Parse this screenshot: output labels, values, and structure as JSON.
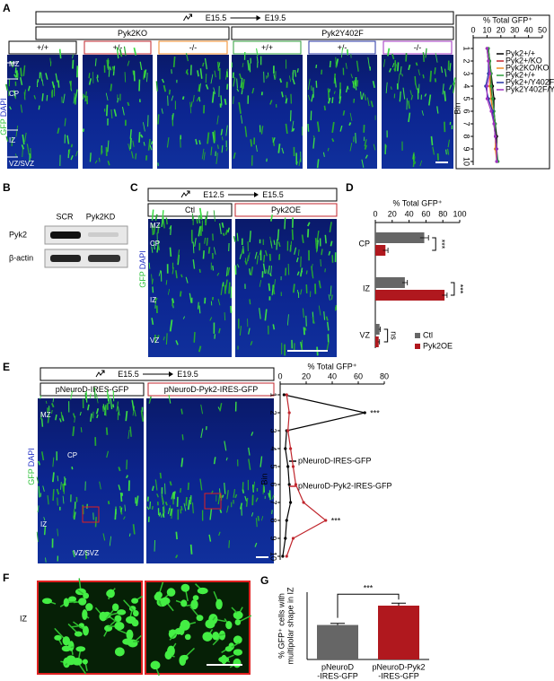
{
  "panels": {
    "labels": [
      "A",
      "B",
      "C",
      "D",
      "E",
      "F",
      "G"
    ]
  },
  "panel_a": {
    "from": "E15.5",
    "to": "E19.5",
    "groups": [
      "Pyk2KO",
      "Pyk2Y402F"
    ],
    "genotypes": [
      "+/+",
      "+/-",
      "-/-",
      "+/+",
      "+/-",
      "-/-"
    ],
    "genotype_colors": [
      "#000000",
      "#c0262d",
      "#f08a24",
      "#2e9e3a",
      "#2433a6",
      "#a030c0"
    ],
    "layers": [
      "MZ",
      "CP",
      "IZ",
      "VZ/SVZ"
    ],
    "stains": [
      "GFP",
      "DAPI"
    ]
  },
  "panel_b": {
    "lanes": [
      "SCR",
      "Pyk2KD"
    ],
    "proteins": [
      "Pyk2",
      "β-actin"
    ]
  },
  "panel_c": {
    "from": "E12.5",
    "to": "E15.5",
    "conditions": [
      "Ctl",
      "Pyk2OE"
    ],
    "condition_colors": [
      "#000000",
      "#c0262d"
    ],
    "layers": [
      "MZ",
      "CP",
      "IZ",
      "VZ"
    ],
    "stains": [
      "GFP",
      "DAPI"
    ]
  },
  "panel_e": {
    "from": "E15.5",
    "to": "E19.5",
    "conditions": [
      "pNeuroD-IRES-GFP",
      "pNeuroD-Pyk2-IRES-GFP"
    ],
    "condition_colors": [
      "#000000",
      "#c0262d"
    ],
    "layers": [
      "MZ",
      "CP",
      "IZ",
      "VZ/SVZ"
    ],
    "stains": [
      "GFP",
      "DAPI"
    ]
  },
  "panel_f": {
    "region": "IZ"
  },
  "chart_data": [
    {
      "type": "line",
      "orientation": "horizontal",
      "xlabel": "% Total GFP⁺",
      "ylabel": "Bin",
      "categories": [
        1,
        2,
        3,
        4,
        5,
        6,
        7,
        8,
        9,
        10
      ],
      "xlim": [
        0,
        50
      ],
      "xticks": [
        0,
        10,
        20,
        30,
        40,
        50
      ],
      "series": [
        {
          "name": "Pyk2+/+",
          "color": "#000000",
          "values": [
            11,
            12,
            13,
            14,
            15,
            15,
            16,
            17,
            17,
            17
          ]
        },
        {
          "name": "Pyk2+/KO",
          "color": "#c0262d",
          "values": [
            10,
            11,
            12,
            13,
            13,
            14,
            15,
            16,
            17,
            17
          ]
        },
        {
          "name": "Pyk2KO/KO",
          "color": "#f08a24",
          "values": [
            10,
            11,
            12,
            12,
            13,
            14,
            15,
            16,
            16,
            17
          ]
        },
        {
          "name": "Pyk2+/+",
          "color": "#2e9e3a",
          "values": [
            11,
            12,
            13,
            13,
            14,
            15,
            16,
            16,
            17,
            18
          ]
        },
        {
          "name": "Pyk2+/Y402F",
          "color": "#2433a6",
          "values": [
            10,
            11,
            11,
            9,
            11,
            14,
            15,
            16,
            17,
            17
          ]
        },
        {
          "name": "Pyk2Y402F/Y402F",
          "color": "#a030c0",
          "values": [
            10,
            11,
            12,
            10,
            10,
            13,
            15,
            16,
            17,
            17
          ]
        }
      ]
    },
    {
      "type": "bar",
      "orientation": "horizontal",
      "xlabel": "% Total GFP⁺",
      "categories": [
        "CP",
        "IZ",
        "VZ"
      ],
      "xlim": [
        0,
        100
      ],
      "xticks": [
        0,
        20,
        40,
        60,
        80,
        100
      ],
      "series": [
        {
          "name": "Ctl",
          "color": "#666666",
          "values": [
            58,
            35,
            5
          ],
          "errors": [
            5,
            3,
            1
          ]
        },
        {
          "name": "Pyk2OE",
          "color": "#b0181e",
          "values": [
            12,
            82,
            4
          ],
          "errors": [
            3,
            3,
            1
          ]
        }
      ],
      "annotations": [
        "***",
        "***",
        "ns"
      ]
    },
    {
      "type": "line",
      "orientation": "horizontal",
      "xlabel": "% Total GFP⁺",
      "ylabel": "Bin",
      "categories": [
        1,
        2,
        3,
        4,
        5,
        6,
        7,
        8,
        9,
        10
      ],
      "xlim": [
        0,
        80
      ],
      "xticks": [
        0,
        20,
        40,
        60,
        80
      ],
      "series": [
        {
          "name": "pNeuroD-IRES-GFP",
          "color": "#000000",
          "values": [
            3,
            65,
            5,
            4,
            6,
            7,
            8,
            5,
            4,
            2
          ]
        },
        {
          "name": "pNeuroD-Pyk2-IRES-GFP",
          "color": "#c0262d",
          "values": [
            5,
            7,
            6,
            8,
            10,
            12,
            18,
            35,
            10,
            5
          ]
        }
      ],
      "annotations": [
        "***",
        "***"
      ]
    },
    {
      "type": "bar",
      "orientation": "vertical",
      "ylabel": [
        "% GFP⁺ cells with",
        "multipolar shape in IZ"
      ],
      "categories": [
        [
          "pNeuroD",
          "-IRES-GFP"
        ],
        [
          "pNeuroD-Pyk2",
          "-IRES-GFP"
        ]
      ],
      "ylim": [
        0,
        80
      ],
      "values": [
        41,
        64
      ],
      "errors": [
        2,
        3
      ],
      "colors": [
        "#666666",
        "#b0181e"
      ],
      "annotations": [
        "***"
      ]
    }
  ]
}
